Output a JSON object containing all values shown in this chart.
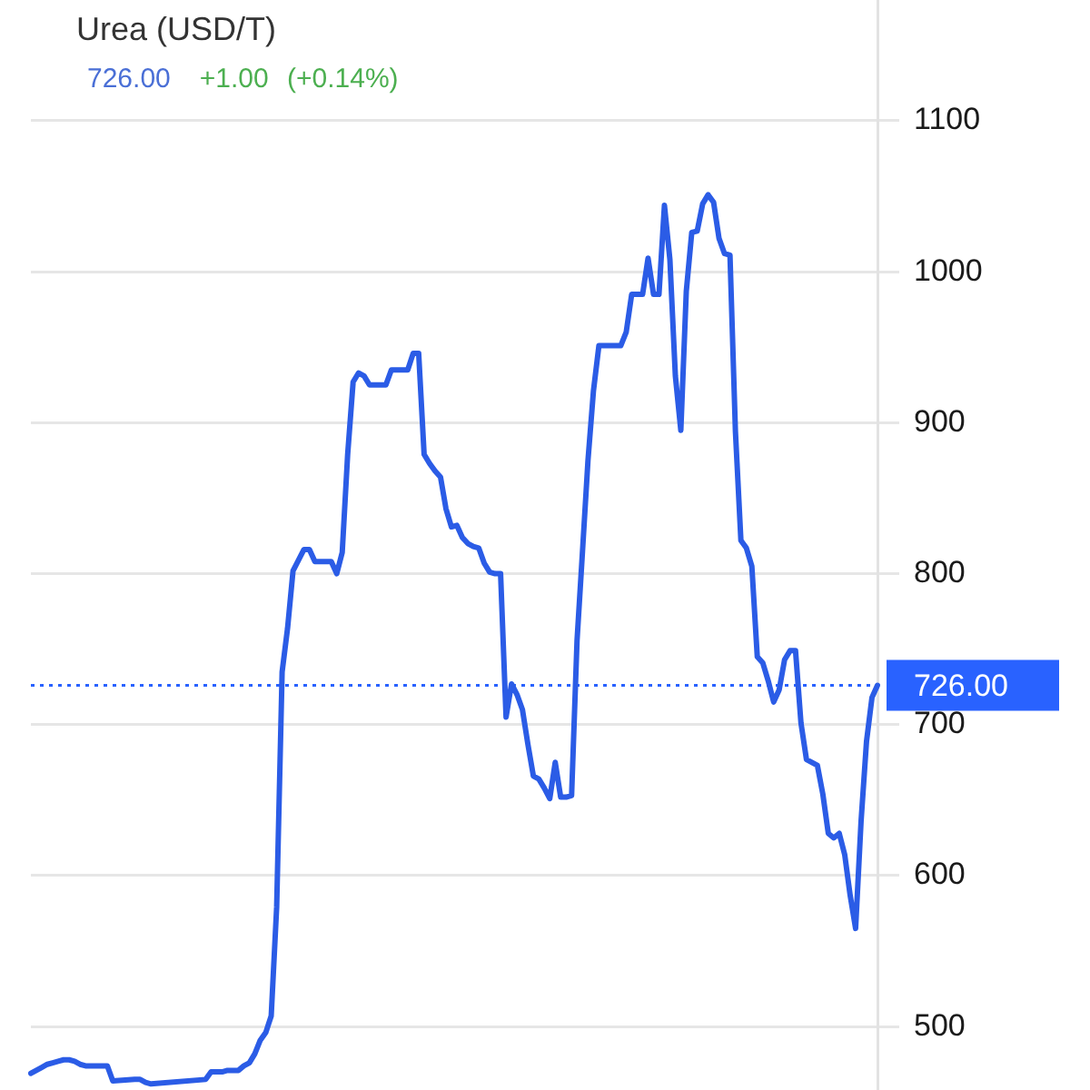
{
  "chart_data": {
    "type": "line",
    "title": "Urea (USD/T)",
    "subtitle": "726.00 +1.00 (+0.14%)",
    "categories": [
      null,
      null,
      null,
      null,
      null,
      null,
      null,
      null,
      null,
      null,
      null,
      null,
      null,
      null,
      null,
      null,
      null,
      null,
      null,
      null,
      null,
      null,
      null,
      null,
      null,
      null,
      null,
      null,
      null,
      null,
      null,
      null,
      null,
      null,
      null,
      null,
      null,
      null,
      null,
      null,
      null,
      null,
      null,
      null,
      null,
      null,
      null,
      null,
      null,
      null,
      null,
      null,
      null,
      null,
      null,
      null,
      null,
      null,
      null,
      null,
      null,
      null,
      null,
      null,
      null,
      null,
      null,
      null,
      null,
      null,
      null,
      null,
      null,
      null,
      null,
      null,
      null,
      null,
      null,
      null,
      null,
      null,
      null,
      null,
      null,
      null,
      null,
      null,
      null,
      null,
      null,
      null,
      null,
      null,
      null,
      null,
      null,
      null,
      null,
      null,
      null,
      null,
      null,
      null,
      null,
      null,
      null,
      null,
      null,
      null,
      null,
      null,
      null,
      null,
      null,
      null,
      null,
      null,
      null,
      null,
      null,
      null,
      null,
      null,
      null,
      null,
      null,
      null,
      null,
      null,
      null,
      null,
      null,
      null,
      null,
      null,
      null,
      null,
      null,
      null,
      null,
      null,
      null,
      null,
      null,
      null,
      null,
      null,
      null,
      null,
      null,
      null,
      null,
      null,
      null,
      null
    ],
    "series": [
      {
        "color": "#2b5ce6",
        "values": [
          469,
          471,
          473,
          475,
          476,
          477,
          478,
          478,
          477,
          475,
          474,
          474,
          474,
          474,
          474,
          464,
          null,
          null,
          null,
          465,
          465,
          463,
          462,
          null,
          null,
          null,
          null,
          null,
          null,
          null,
          null,
          null,
          465,
          470,
          470,
          470,
          471,
          471,
          471,
          474,
          476,
          482,
          491,
          496,
          507,
          579,
          735,
          764,
          802,
          809,
          816,
          816,
          808,
          808,
          808,
          808,
          800,
          814,
          879,
          927,
          933,
          931,
          925,
          925,
          925,
          925,
          935,
          935,
          935,
          935,
          946,
          946,
          879,
          873,
          868,
          864,
          843,
          831,
          832,
          824,
          820,
          818,
          817,
          807,
          801,
          800,
          800,
          705,
          727,
          720,
          710,
          687,
          666,
          664,
          658,
          651,
          675,
          652,
          652,
          653,
          756,
          815,
          875,
          921,
          951,
          951,
          951,
          951,
          951,
          960,
          985,
          985,
          985,
          1009,
          985,
          985,
          1044,
          1008,
          931,
          895,
          987,
          1026,
          1027,
          1045,
          1051,
          1046,
          1022,
          1012,
          1011,
          894,
          822,
          817,
          805,
          745,
          741,
          729,
          715,
          723,
          743,
          749,
          749,
          701,
          677,
          675,
          673,
          654,
          628,
          625,
          628,
          614,
          587,
          565,
          636,
          689,
          718,
          726
        ]
      }
    ],
    "ylim": [
      458,
      1180
    ],
    "yticks": [
      500,
      600,
      700,
      800,
      900,
      1000,
      1100
    ],
    "grid": "y",
    "legend": false,
    "marker": "none",
    "line_style": "solid",
    "ref_lines": [
      {
        "axis": "y",
        "value": 726,
        "label": "726.00",
        "color": "#2962ff",
        "line_style": "dotted"
      }
    ]
  }
}
